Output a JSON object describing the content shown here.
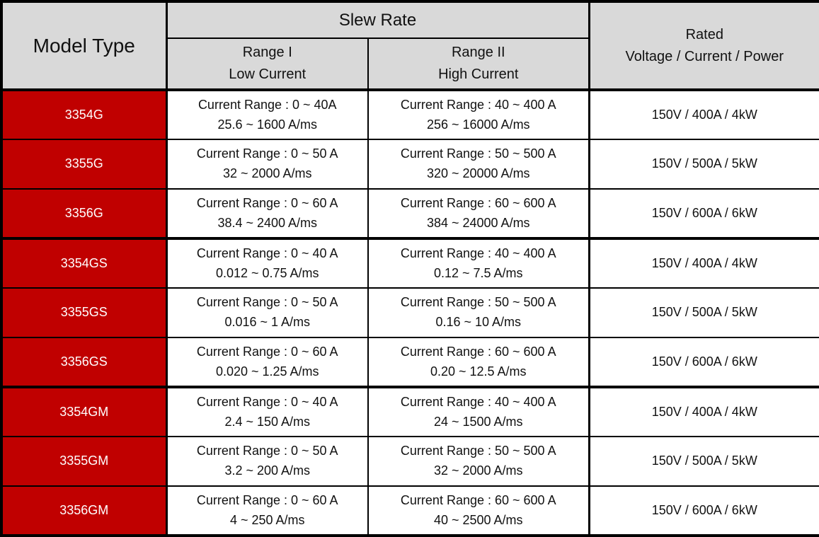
{
  "table": {
    "header": {
      "model_type": "Model Type",
      "slew_rate": "Slew Rate",
      "range1_line1": "Range I",
      "range1_line2": "Low Current",
      "range2_line1": "Range II",
      "range2_line2": "High Current",
      "rated_line1": "Rated",
      "rated_line2": "Voltage / Current / Power"
    },
    "rows": [
      {
        "model": "3354G",
        "range1_current": "Current Range : 0 ~ 40A",
        "range1_slew": "25.6 ~ 1600 A/ms",
        "range2_current": "Current Range : 40 ~ 400 A",
        "range2_slew": "256 ~ 16000 A/ms",
        "rated": "150V / 400A / 4kW",
        "group_start": true
      },
      {
        "model": "3355G",
        "range1_current": "Current Range : 0 ~ 50 A",
        "range1_slew": "32 ~ 2000 A/ms",
        "range2_current": "Current Range : 50 ~ 500 A",
        "range2_slew": "320 ~ 20000 A/ms",
        "rated": "150V / 500A / 5kW",
        "group_start": false
      },
      {
        "model": "3356G",
        "range1_current": "Current Range : 0 ~ 60 A",
        "range1_slew": "38.4 ~ 2400 A/ms",
        "range2_current": "Current Range : 60 ~ 600 A",
        "range2_slew": "384 ~ 24000 A/ms",
        "rated": "150V / 600A / 6kW",
        "group_start": false
      },
      {
        "model": "3354GS",
        "range1_current": "Current Range : 0 ~ 40 A",
        "range1_slew": "0.012 ~ 0.75 A/ms",
        "range2_current": "Current Range : 40 ~ 400 A",
        "range2_slew": "0.12 ~ 7.5 A/ms",
        "rated": "150V / 400A / 4kW",
        "group_start": true
      },
      {
        "model": "3355GS",
        "range1_current": "Current Range : 0 ~ 50 A",
        "range1_slew": "0.016 ~ 1 A/ms",
        "range2_current": "Current Range : 50 ~ 500 A",
        "range2_slew": "0.16 ~ 10 A/ms",
        "rated": "150V / 500A / 5kW",
        "group_start": false
      },
      {
        "model": "3356GS",
        "range1_current": "Current Range : 0 ~ 60 A",
        "range1_slew": "0.020 ~ 1.25 A/ms",
        "range2_current": "Current Range : 60 ~ 600 A",
        "range2_slew": "0.20 ~ 12.5 A/ms",
        "rated": "150V / 600A / 6kW",
        "group_start": false
      },
      {
        "model": "3354GM",
        "range1_current": "Current Range : 0 ~ 40 A",
        "range1_slew": "2.4 ~ 150 A/ms",
        "range2_current": "Current Range : 40 ~ 400 A",
        "range2_slew": "24 ~ 1500 A/ms",
        "rated": "150V / 400A / 4kW",
        "group_start": true
      },
      {
        "model": "3355GM",
        "range1_current": "Current Range : 0 ~ 50 A",
        "range1_slew": "3.2 ~ 200 A/ms",
        "range2_current": "Current Range : 50 ~ 500 A",
        "range2_slew": "32 ~ 2000 A/ms",
        "rated": "150V / 500A / 5kW",
        "group_start": false
      },
      {
        "model": "3356GM",
        "range1_current": "Current Range : 0 ~ 60 A",
        "range1_slew": "4 ~ 250 A/ms",
        "range2_current": "Current Range : 60 ~ 600 A",
        "range2_slew": "40 ~ 2500 A/ms",
        "rated": "150V / 600A / 6kW",
        "group_start": false
      }
    ]
  },
  "colors": {
    "model_cell_bg": "#c00000",
    "header_bg": "#d9d9d9",
    "model_text": "#ffffff",
    "border_color": "#000000",
    "text_color": "#111111"
  }
}
